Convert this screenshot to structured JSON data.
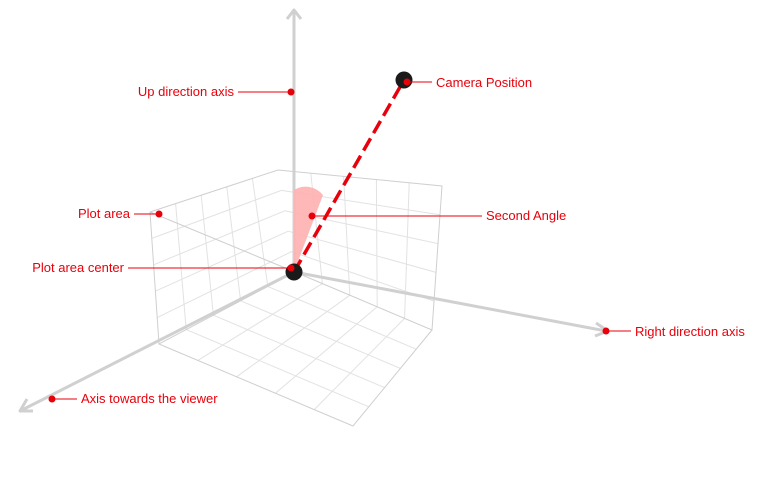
{
  "colors": {
    "callout": "#e8000b",
    "axis": "#d0d0d0",
    "grid": "#e2e2e2",
    "box_edge": "#cfcfcf",
    "camera_line": "#e8000b",
    "angle_fill": "#ffb0b0",
    "point": "#1a1a1a"
  },
  "callouts": {
    "up_axis": "Up direction axis",
    "camera_position": "Camera Position",
    "plot_area": "Plot area",
    "second_angle": "Second Angle",
    "plot_area_center": "Plot area center",
    "right_axis": "Right direction axis",
    "viewer_axis": "Axis towards the viewer"
  }
}
